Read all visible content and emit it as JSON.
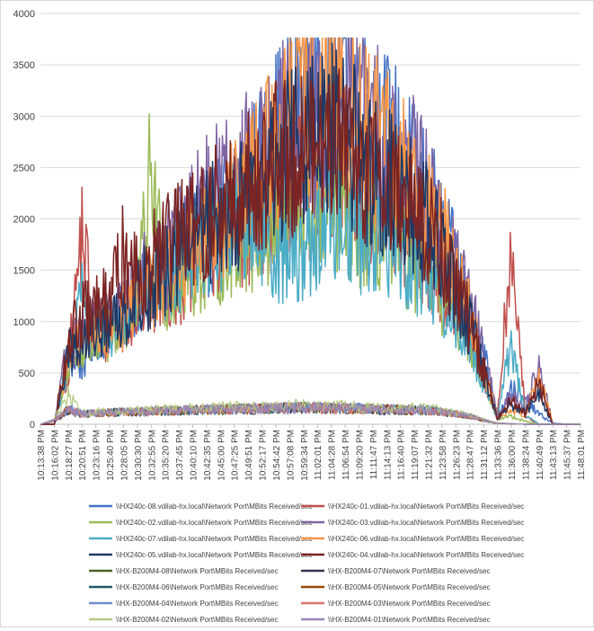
{
  "chart_data": {
    "type": "line",
    "title": "",
    "xlabel": "",
    "ylabel": "",
    "ylim": [
      0,
      4000
    ],
    "yticks": [
      0,
      500,
      1000,
      1500,
      2000,
      2500,
      3000,
      3500,
      4000
    ],
    "grid": "horizontal",
    "legend_position": "bottom",
    "x_tick_labels": [
      "10:13:38 PM",
      "10:16:02 PM",
      "10:18:27 PM",
      "10:20:51 PM",
      "10:23:16 PM",
      "10:25:40 PM",
      "10:28:05 PM",
      "10:30:30 PM",
      "10:32:55 PM",
      "10:35:20 PM",
      "10:37:45 PM",
      "10:40:10 PM",
      "10:42:35 PM",
      "10:45:00 PM",
      "10:47:25 PM",
      "10:49:51 PM",
      "10:52:17 PM",
      "10:54:42 PM",
      "10:57:08 PM",
      "10:59:34 PM",
      "11:02:01 PM",
      "11:04:28 PM",
      "11:06:54 PM",
      "11:09:20 PM",
      "11:11:47 PM",
      "11:14:13 PM",
      "11:16:40 PM",
      "11:19:07 PM",
      "11:21:32 PM",
      "11:23:58 PM",
      "11:26:23 PM",
      "11:28:47 PM",
      "11:31:12 PM",
      "11:33:36 PM",
      "11:36:00 PM",
      "11:38:24 PM",
      "11:40:49 PM",
      "11:43:13 PM",
      "11:45:37 PM",
      "11:48:01 PM"
    ],
    "series": [
      {
        "name": "\\\\HX240c-08.vdilab-hx.local\\Network Port\\MBits Received/sec",
        "color": "#4472c4",
        "group": "hx240",
        "values": [
          0,
          0,
          650,
          580,
          890,
          940,
          1050,
          1310,
          1280,
          1520,
          1700,
          1980,
          1760,
          2050,
          2150,
          2380,
          2520,
          2800,
          3000,
          3250,
          3150,
          3380,
          3560,
          3180,
          2950,
          2800,
          2600,
          2400,
          2200,
          1850,
          1500,
          1150,
          700,
          80,
          350,
          220,
          100,
          10,
          0,
          0
        ]
      },
      {
        "name": "\\\\HX240c-01.vdilab-hx.local\\Network Port\\MBits Received/sec",
        "color": "#c0504d",
        "group": "hx240",
        "values": [
          0,
          0,
          520,
          1900,
          850,
          900,
          1000,
          1150,
          1180,
          1320,
          1390,
          1560,
          1610,
          1740,
          1880,
          1950,
          2080,
          2170,
          2250,
          2380,
          2280,
          2360,
          2300,
          2180,
          2080,
          1990,
          1900,
          1800,
          1650,
          1400,
          1150,
          850,
          470,
          60,
          1850,
          80,
          0,
          0,
          0,
          0
        ]
      },
      {
        "name": "\\\\HX240c-02.vdilab-hx.local\\Network Port\\MBits Received/sec",
        "color": "#9bbb59",
        "group": "hx240",
        "values": [
          0,
          0,
          600,
          700,
          780,
          850,
          960,
          1150,
          2500,
          1300,
          1400,
          1500,
          1580,
          1680,
          1780,
          1840,
          1900,
          1880,
          1980,
          2080,
          2000,
          2100,
          2020,
          1930,
          1850,
          1780,
          1690,
          1580,
          1470,
          1250,
          1050,
          850,
          450,
          50,
          80,
          30,
          0,
          0,
          0,
          0
        ]
      },
      {
        "name": "\\\\HX240c-03.vdilab-hx.local\\Network Port\\MBits Received/sec",
        "color": "#8064a2",
        "group": "hx240",
        "values": [
          0,
          0,
          780,
          880,
          950,
          1000,
          1080,
          1450,
          1400,
          1600,
          1850,
          2000,
          2150,
          2250,
          2380,
          2480,
          2650,
          2780,
          2880,
          2980,
          2900,
          3050,
          3180,
          3010,
          2850,
          2700,
          2580,
          2420,
          2210,
          1880,
          1500,
          1150,
          700,
          80,
          300,
          150,
          600,
          0,
          0,
          0
        ]
      },
      {
        "name": "\\\\HX240c-07.vdilab-hx.local\\Network Port\\MBits Received/sec",
        "color": "#4bacc6",
        "group": "hx240",
        "values": [
          0,
          0,
          580,
          1200,
          900,
          950,
          1020,
          1180,
          1250,
          1400,
          1520,
          1680,
          1740,
          1880,
          1960,
          2060,
          1850,
          1700,
          1650,
          1720,
          1850,
          2000,
          1960,
          1850,
          1790,
          1720,
          1650,
          1560,
          1450,
          1250,
          1000,
          800,
          420,
          60,
          820,
          80,
          0,
          0,
          0,
          0
        ]
      },
      {
        "name": "\\\\HX240c-06.vdilab-hx.local\\Network Port\\MBits Received/sec",
        "color": "#f79646",
        "group": "hx240",
        "values": [
          0,
          0,
          650,
          800,
          880,
          950,
          1050,
          1250,
          1320,
          1450,
          1600,
          1780,
          1880,
          2000,
          2150,
          2300,
          2550,
          2750,
          2980,
          3200,
          3100,
          3150,
          3080,
          2920,
          2780,
          2650,
          2520,
          2350,
          2150,
          1820,
          1450,
          1050,
          550,
          60,
          150,
          80,
          500,
          0,
          0,
          0
        ]
      },
      {
        "name": "\\\\HX240c-05.vdilab-hx.local\\Network Port\\MBits Received/sec",
        "color": "#1f3864",
        "group": "hx240",
        "values": [
          0,
          0,
          700,
          820,
          900,
          980,
          1080,
          1280,
          1350,
          1480,
          1620,
          1800,
          1900,
          2020,
          2150,
          2270,
          2400,
          2520,
          2650,
          2780,
          2700,
          2820,
          2760,
          2620,
          2480,
          2360,
          2240,
          2100,
          1920,
          1620,
          1300,
          960,
          520,
          50,
          200,
          120,
          300,
          0,
          0,
          0
        ]
      },
      {
        "name": "\\\\HX240c-04.vdilab-hx.local\\Network Port\\MBits Received/sec",
        "color": "#7b2423",
        "group": "hx240",
        "values": [
          0,
          0,
          800,
          1050,
          1100,
          1200,
          1650,
          1520,
          1580,
          1700,
          1800,
          1920,
          2000,
          2120,
          2230,
          2330,
          2450,
          2560,
          2650,
          2750,
          2680,
          2780,
          2720,
          2590,
          2470,
          2360,
          2250,
          2120,
          1950,
          1660,
          1330,
          980,
          530,
          60,
          250,
          100,
          400,
          0,
          0,
          0
        ]
      },
      {
        "name": "\\\\HX-B200M4-08\\Network Port\\MBits Received/sec",
        "color": "#4f6228",
        "group": "b200",
        "values": [
          0,
          40,
          150,
          100,
          110,
          115,
          120,
          125,
          128,
          130,
          135,
          140,
          142,
          145,
          148,
          150,
          152,
          155,
          158,
          160,
          158,
          155,
          152,
          150,
          148,
          145,
          142,
          140,
          135,
          120,
          100,
          80,
          40,
          10,
          5,
          0,
          0,
          0,
          0,
          0
        ]
      },
      {
        "name": "\\\\HX-B200M4-07\\Network Port\\MBits Received/sec",
        "color": "#3f3151",
        "group": "b200",
        "values": [
          0,
          30,
          130,
          95,
          105,
          110,
          115,
          118,
          122,
          126,
          130,
          134,
          137,
          140,
          143,
          146,
          149,
          152,
          155,
          158,
          156,
          153,
          150,
          147,
          144,
          141,
          138,
          135,
          130,
          115,
          95,
          75,
          35,
          8,
          4,
          0,
          0,
          0,
          0,
          0
        ]
      },
      {
        "name": "\\\\HX-B200M4-06\\Network Port\\MBits Received/sec",
        "color": "#215967",
        "group": "b200",
        "values": [
          0,
          35,
          140,
          100,
          108,
          112,
          117,
          121,
          125,
          129,
          133,
          137,
          140,
          143,
          146,
          149,
          152,
          155,
          158,
          161,
          159,
          156,
          153,
          150,
          147,
          144,
          141,
          138,
          133,
          118,
          98,
          78,
          38,
          9,
          4,
          0,
          0,
          0,
          0,
          0
        ]
      },
      {
        "name": "\\\\HX-B200M4-05\\Network Port\\MBits Received/sec",
        "color": "#984807",
        "group": "b200",
        "values": [
          0,
          38,
          135,
          98,
          106,
          111,
          116,
          120,
          124,
          128,
          132,
          136,
          139,
          142,
          145,
          148,
          151,
          154,
          157,
          160,
          158,
          155,
          152,
          149,
          146,
          143,
          140,
          137,
          132,
          117,
          97,
          77,
          37,
          9,
          4,
          0,
          0,
          0,
          0,
          0
        ]
      },
      {
        "name": "\\\\HX-B200M4-04\\Network Port\\MBits Received/sec",
        "color": "#6f8fcf",
        "group": "b200",
        "values": [
          0,
          42,
          160,
          102,
          112,
          117,
          122,
          126,
          130,
          134,
          138,
          142,
          145,
          148,
          151,
          154,
          157,
          160,
          163,
          166,
          164,
          161,
          158,
          155,
          152,
          149,
          146,
          143,
          138,
          122,
          102,
          82,
          42,
          11,
          5,
          0,
          0,
          0,
          0,
          0
        ]
      },
      {
        "name": "\\\\HX-B200M4-03\\Network Port\\MBits Received/sec",
        "color": "#d9776f",
        "group": "b200",
        "values": [
          0,
          36,
          145,
          99,
          107,
          112,
          117,
          121,
          125,
          129,
          133,
          137,
          140,
          143,
          146,
          149,
          152,
          155,
          158,
          161,
          159,
          156,
          153,
          150,
          147,
          144,
          141,
          138,
          133,
          118,
          98,
          78,
          38,
          9,
          4,
          0,
          0,
          0,
          0,
          0
        ]
      },
      {
        "name": "\\\\HX-B200M4-02\\Network Port\\MBits Received/sec",
        "color": "#b5ca82",
        "group": "b200",
        "values": [
          0,
          45,
          280,
          110,
          118,
          124,
          130,
          135,
          140,
          145,
          150,
          155,
          158,
          162,
          166,
          170,
          173,
          176,
          180,
          185,
          182,
          178,
          174,
          170,
          166,
          162,
          158,
          154,
          148,
          132,
          110,
          88,
          45,
          12,
          6,
          0,
          0,
          0,
          0,
          0
        ]
      },
      {
        "name": "\\\\HX-B200M4-01\\Network Port\\MBits Received/sec",
        "color": "#9a85b8",
        "group": "b200",
        "values": [
          0,
          40,
          150,
          100,
          110,
          115,
          120,
          124,
          128,
          132,
          136,
          140,
          143,
          146,
          149,
          152,
          155,
          158,
          161,
          164,
          162,
          159,
          156,
          153,
          150,
          147,
          144,
          141,
          136,
          120,
          100,
          80,
          40,
          10,
          5,
          0,
          0,
          0,
          0,
          0
        ]
      }
    ]
  }
}
